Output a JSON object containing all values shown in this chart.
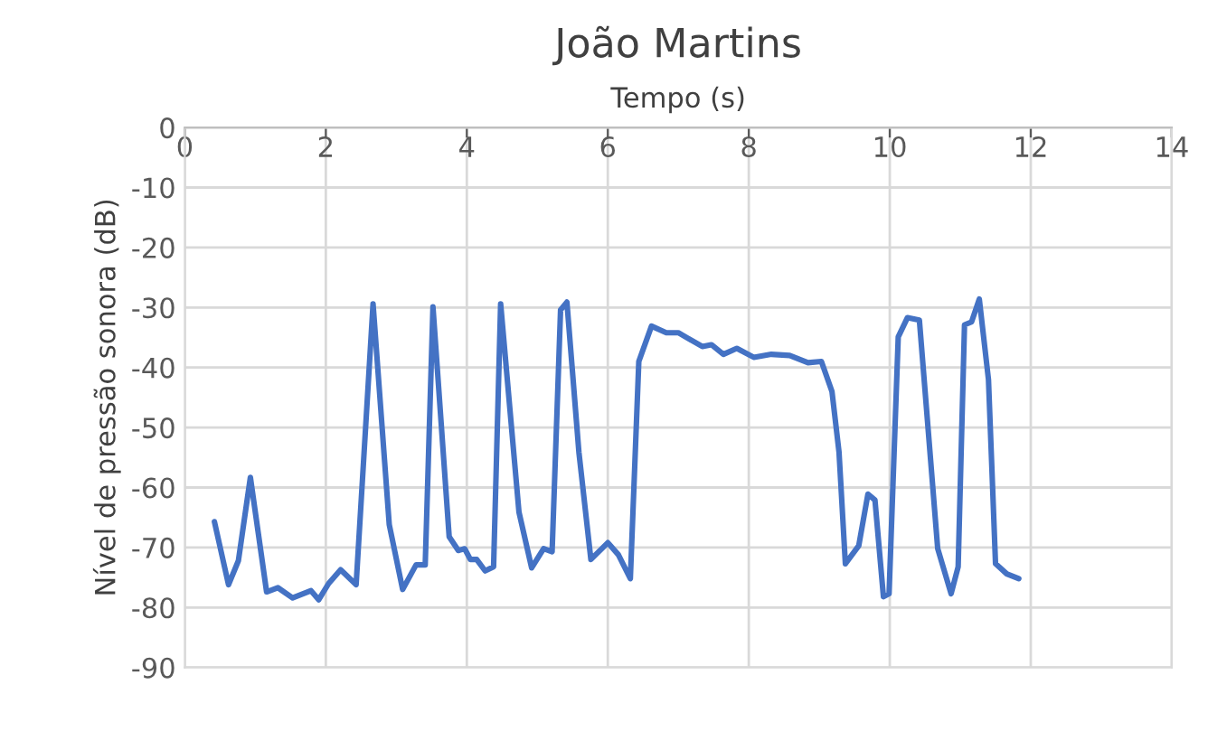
{
  "chart_data": {
    "type": "line",
    "title": "João Martins",
    "xlabel": "Tempo (s)",
    "ylabel": "Nível de pressão sonora (dB)",
    "xlim": [
      0,
      14
    ],
    "xticks": [
      0,
      2,
      4,
      6,
      8,
      10,
      12,
      14
    ],
    "ylim": [
      -90,
      0
    ],
    "yticks": [
      -90,
      -80,
      -70,
      -60,
      -50,
      -40,
      -30,
      -20,
      -10,
      0
    ],
    "grid": true,
    "line_style": "solid",
    "marker": "none",
    "series": [
      {
        "color": "#4472c4",
        "x": [
          0.42,
          0.62,
          0.76,
          0.93,
          1.16,
          1.32,
          1.53,
          1.79,
          1.9,
          2.04,
          2.21,
          2.43,
          2.67,
          2.9,
          3.09,
          3.28,
          3.41,
          3.52,
          3.75,
          3.88,
          3.97,
          4.05,
          4.14,
          4.26,
          4.38,
          4.48,
          4.74,
          4.92,
          5.09,
          5.21,
          5.33,
          5.42,
          5.59,
          5.76,
          6.0,
          6.15,
          6.32,
          6.44,
          6.62,
          6.83,
          7.0,
          7.34,
          7.47,
          7.64,
          7.83,
          8.07,
          8.32,
          8.58,
          8.84,
          9.03,
          9.18,
          9.28,
          9.37,
          9.56,
          9.69,
          9.79,
          9.91,
          9.99,
          10.12,
          10.25,
          10.42,
          10.68,
          10.87,
          10.97,
          11.06,
          11.16,
          11.27,
          11.4,
          11.5,
          11.66,
          11.83
        ],
        "values": [
          -65.7,
          -76.2,
          -72.2,
          -58.3,
          -77.4,
          -76.7,
          -78.4,
          -77.2,
          -78.7,
          -76,
          -73.7,
          -76.2,
          -29.4,
          -66.2,
          -77,
          -72.9,
          -72.9,
          -29.9,
          -68.2,
          -70.5,
          -70.2,
          -72,
          -72,
          -73.9,
          -73.2,
          -29.4,
          -64.1,
          -73.4,
          -70.2,
          -70.7,
          -30.4,
          -29.1,
          -54.1,
          -72,
          -69.2,
          -71.2,
          -75.2,
          -39,
          -33.1,
          -34.2,
          -34.2,
          -36.5,
          -36.2,
          -37.8,
          -36.8,
          -38.3,
          -37.8,
          -38,
          -39.2,
          -39,
          -44,
          -54.1,
          -72.7,
          -69.7,
          -61.1,
          -62.1,
          -78.2,
          -77.7,
          -34.9,
          -31.7,
          -32.1,
          -70.2,
          -77.7,
          -73.2,
          -32.9,
          -32.4,
          -28.6,
          -42,
          -72.7,
          -74.4,
          -75.2
        ]
      }
    ]
  }
}
